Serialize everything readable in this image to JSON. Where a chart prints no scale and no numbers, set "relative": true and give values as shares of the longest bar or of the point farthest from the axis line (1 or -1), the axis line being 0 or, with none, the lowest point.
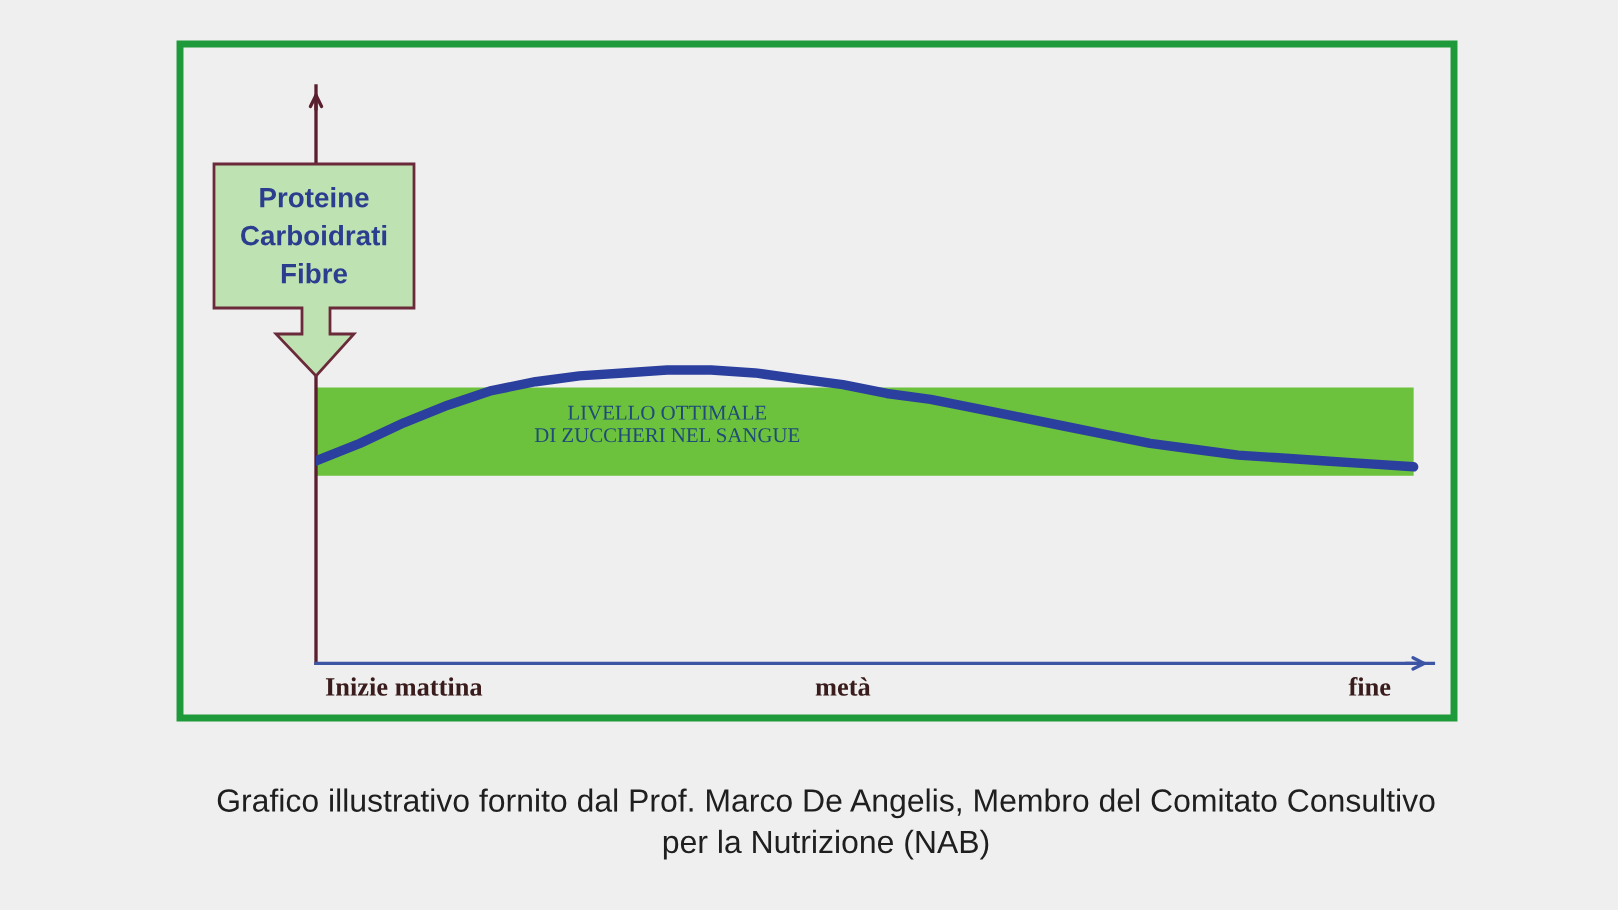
{
  "chart_data": {
    "type": "line",
    "relative": true,
    "categories": [
      null,
      null,
      "Inizie mattina",
      null,
      null,
      null,
      null,
      null,
      null,
      null,
      null,
      null,
      "metà",
      null,
      null,
      null,
      null,
      null,
      null,
      null,
      null,
      null,
      null,
      null,
      "fine",
      null
    ],
    "series": [
      {
        "color": "#2b3f9e",
        "values": [
          0.69,
          0.75,
          0.82,
          0.88,
          0.93,
          0.96,
          0.98,
          0.99,
          1.0,
          1.0,
          0.99,
          0.97,
          0.95,
          0.92,
          0.9,
          0.87,
          0.84,
          0.81,
          0.78,
          0.75,
          0.73,
          0.71,
          0.7,
          0.69,
          0.68,
          0.67
        ]
      }
    ],
    "bands": [
      {
        "axis": "y",
        "from": 0.64,
        "to": 0.94,
        "label": "LIVELLO OTTIMALE\nDI ZUCCHERI NEL SANGUE",
        "color": "#6cc23c"
      }
    ],
    "annotations": [
      "Proteine\nCarboidrati\nFibre",
      "Grafico illustrativo fornito dal Prof. Marco De Angelis, Membro del Comitato Consultivo\nper la Nutrizione (NAB)"
    ]
  }
}
